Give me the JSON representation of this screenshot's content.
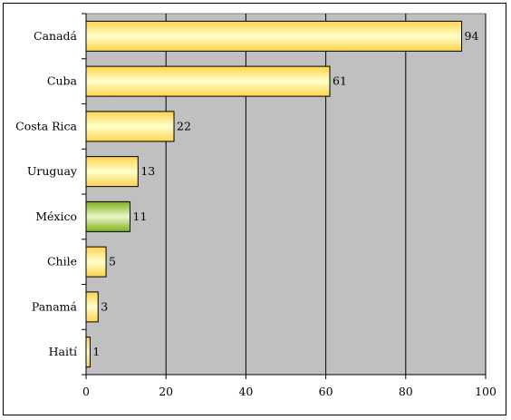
{
  "chart_data": {
    "type": "bar",
    "orientation": "horizontal",
    "categories": [
      "Canadá",
      "Cuba",
      "Costa Rica",
      "Uruguay",
      "México",
      "Chile",
      "Panamá",
      "Haití"
    ],
    "values": [
      94,
      61,
      22,
      13,
      11,
      5,
      3,
      1
    ],
    "data_labels": [
      "94",
      "61",
      "22",
      "13",
      "11",
      "5",
      "3",
      "1"
    ],
    "highlight_category": "México",
    "xlim": [
      0,
      100
    ],
    "x_ticks": [
      0,
      20,
      40,
      60,
      80,
      100
    ],
    "x_tick_labels": [
      "0",
      "20",
      "40",
      "60",
      "80",
      "100"
    ],
    "title": "",
    "xlabel": "",
    "ylabel": "",
    "grid": "vertical",
    "legend": "none",
    "colors": {
      "plot_background": "#c0c0c0",
      "bar_fill": "#ffd24d",
      "bar_fill_light": "#ffffcc",
      "highlight_fill": "#7fb21a",
      "highlight_fill_light": "#e8f5c8",
      "gridline": "#000000"
    }
  }
}
